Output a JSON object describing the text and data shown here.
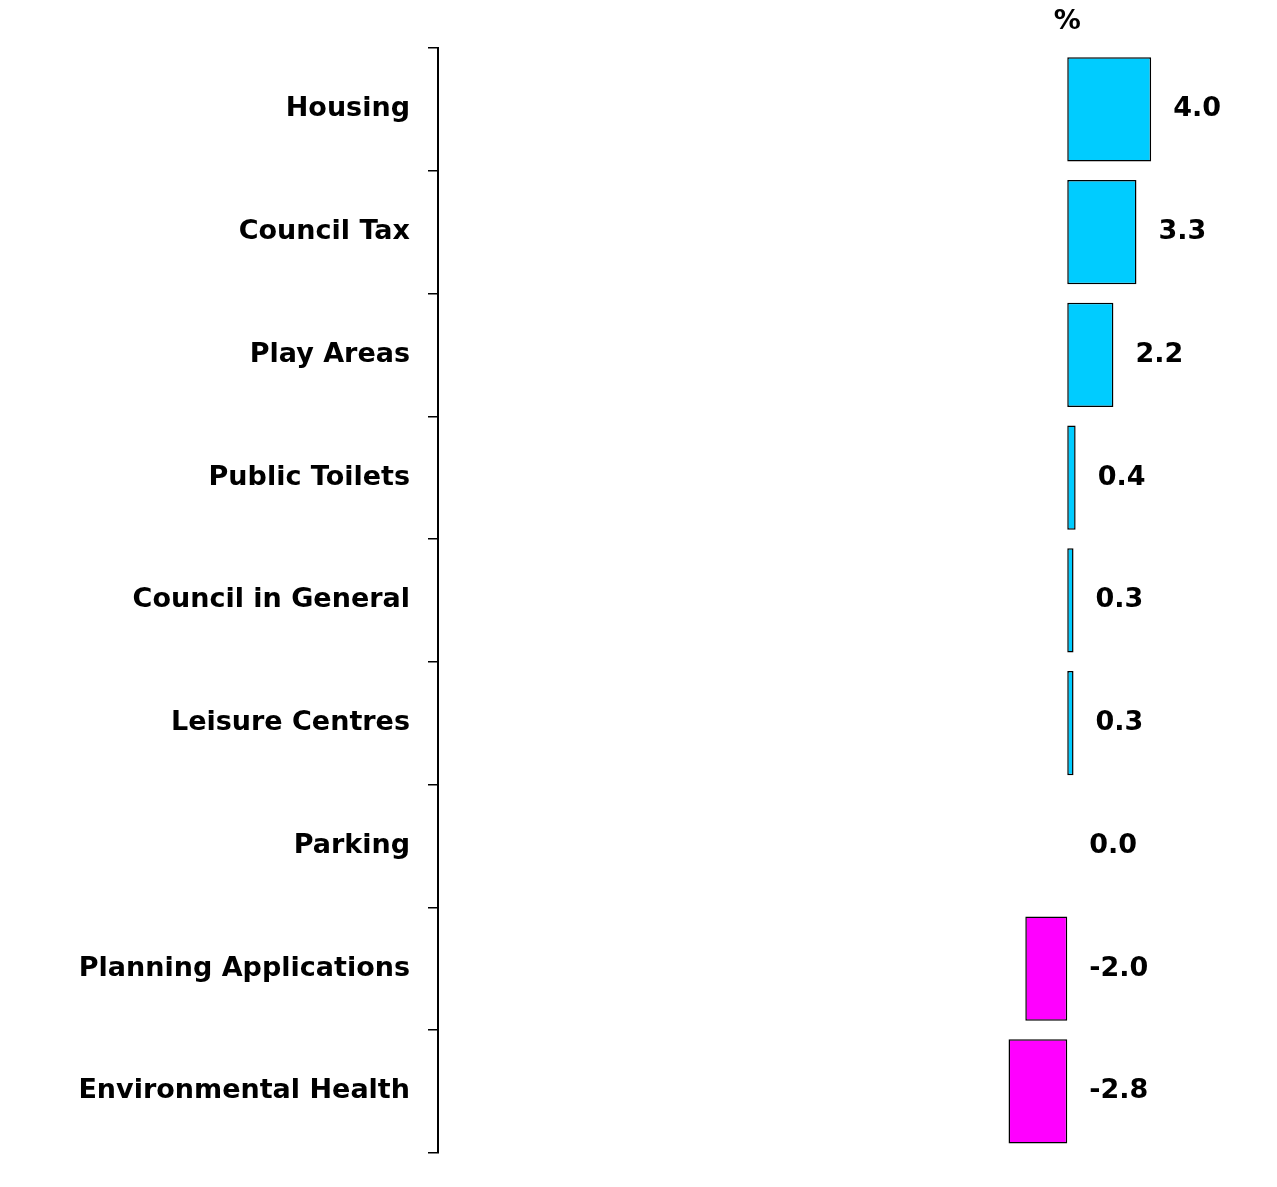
{
  "chart_data": {
    "type": "bar",
    "orientation": "horizontal",
    "categories": [
      "Housing",
      "Council Tax",
      "Play Areas",
      "Public Toilets",
      "Council in General",
      "Leisure Centres",
      "Parking",
      "Planning Applications",
      "Environmental Health"
    ],
    "values": [
      4.0,
      3.3,
      2.2,
      0.4,
      0.3,
      0.3,
      0.0,
      -2.0,
      -2.8
    ],
    "colors": [
      "#00ccff",
      "#00ccff",
      "#00ccff",
      "#00ccff",
      "#00ccff",
      "#00ccff",
      "#00ccff",
      "#ff00ff",
      "#ff00ff"
    ],
    "value_labels": [
      "4.0",
      "3.3",
      "2.2",
      "0.4",
      "0.3",
      "0.3",
      "0.0",
      "-2.0",
      "-2.8"
    ],
    "tick_labels": "y",
    "grid": false,
    "legend": false,
    "annotations": [
      "%"
    ]
  }
}
